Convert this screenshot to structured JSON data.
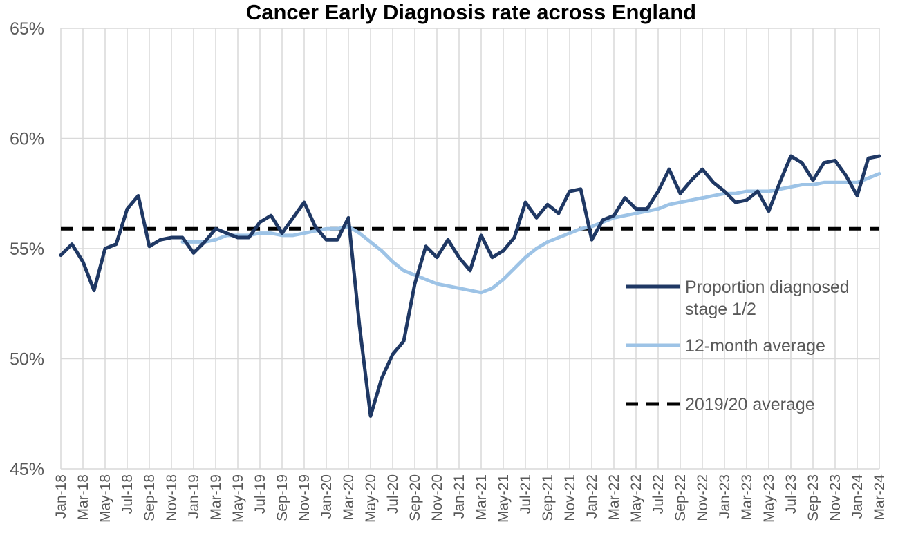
{
  "chart_data": {
    "type": "line",
    "title": "Cancer Early Diagnosis rate across England",
    "xlabel": "",
    "ylabel": "",
    "ylim": [
      45,
      65
    ],
    "y_ticks": [
      "45%",
      "50%",
      "55%",
      "60%",
      "65%"
    ],
    "y_tick_values": [
      45,
      50,
      55,
      60,
      65
    ],
    "grid": "vertical and horizontal",
    "legend_position": "right",
    "x": [
      "Jan-18",
      "Feb-18",
      "Mar-18",
      "Apr-18",
      "May-18",
      "Jun-18",
      "Jul-18",
      "Aug-18",
      "Sep-18",
      "Oct-18",
      "Nov-18",
      "Dec-18",
      "Jan-19",
      "Feb-19",
      "Mar-19",
      "Apr-19",
      "May-19",
      "Jun-19",
      "Jul-19",
      "Aug-19",
      "Sep-19",
      "Oct-19",
      "Nov-19",
      "Dec-19",
      "Jan-20",
      "Feb-20",
      "Mar-20",
      "Apr-20",
      "May-20",
      "Jun-20",
      "Jul-20",
      "Aug-20",
      "Sep-20",
      "Oct-20",
      "Nov-20",
      "Dec-20",
      "Jan-21",
      "Feb-21",
      "Mar-21",
      "Apr-21",
      "May-21",
      "Jun-21",
      "Jul-21",
      "Aug-21",
      "Sep-21",
      "Oct-21",
      "Nov-21",
      "Dec-21",
      "Jan-22",
      "Feb-22",
      "Mar-22",
      "Apr-22",
      "May-22",
      "Jun-22",
      "Jul-22",
      "Aug-22",
      "Sep-22",
      "Oct-22",
      "Nov-22",
      "Dec-22",
      "Jan-23",
      "Feb-23",
      "Mar-23",
      "Apr-23",
      "May-23",
      "Jun-23",
      "Jul-23",
      "Aug-23",
      "Sep-23",
      "Oct-23",
      "Nov-23",
      "Dec-23",
      "Jan-24",
      "Feb-24",
      "Mar-24"
    ],
    "x_tick_labels": [
      "Jan-18",
      "Mar-18",
      "May-18",
      "Jul-18",
      "Sep-18",
      "Nov-18",
      "Jan-19",
      "Mar-19",
      "May-19",
      "Jul-19",
      "Sep-19",
      "Nov-19",
      "Jan-20",
      "Mar-20",
      "May-20",
      "Jul-20",
      "Sep-20",
      "Nov-20",
      "Jan-21",
      "Mar-21",
      "May-21",
      "Jul-21",
      "Sep-21",
      "Nov-21",
      "Jan-22",
      "Mar-22",
      "May-22",
      "Jul-22",
      "Sep-22",
      "Nov-22",
      "Jan-23",
      "Mar-23",
      "May-23",
      "Jul-23",
      "Sep-23",
      "Nov-23",
      "Jan-24",
      "Mar-24"
    ],
    "series": [
      {
        "name": "Proportion diagnosed stage 1/2",
        "color": "#1f3864",
        "style": "solid",
        "values": [
          54.7,
          55.2,
          54.4,
          53.1,
          55.0,
          55.2,
          56.8,
          57.4,
          55.1,
          55.4,
          55.5,
          55.5,
          54.8,
          55.3,
          55.9,
          55.7,
          55.5,
          55.5,
          56.2,
          56.5,
          55.7,
          56.4,
          57.1,
          56.0,
          55.4,
          55.4,
          56.4,
          51.5,
          47.4,
          49.1,
          50.2,
          50.8,
          53.4,
          55.1,
          54.6,
          55.4,
          54.6,
          54.0,
          55.6,
          54.6,
          54.9,
          55.5,
          57.1,
          56.4,
          57.0,
          56.6,
          57.6,
          57.7,
          55.4,
          56.3,
          56.5,
          57.3,
          56.8,
          56.8,
          57.6,
          58.6,
          57.5,
          58.1,
          58.6,
          58.0,
          57.6,
          57.1,
          57.2,
          57.6,
          56.7,
          58.0,
          59.2,
          58.9,
          58.1,
          58.9,
          59.0,
          58.3,
          57.4,
          59.1,
          59.2
        ]
      },
      {
        "name": "12-month average",
        "color": "#9dc3e6",
        "style": "solid",
        "values": [
          null,
          null,
          null,
          null,
          null,
          null,
          null,
          null,
          null,
          null,
          null,
          55.3,
          55.3,
          55.3,
          55.4,
          55.6,
          55.6,
          55.6,
          55.7,
          55.7,
          55.6,
          55.6,
          55.7,
          55.8,
          55.9,
          55.9,
          56.0,
          55.7,
          55.3,
          54.9,
          54.4,
          54.0,
          53.8,
          53.6,
          53.4,
          53.3,
          53.2,
          53.1,
          53.0,
          53.2,
          53.6,
          54.1,
          54.6,
          55.0,
          55.3,
          55.5,
          55.7,
          55.9,
          56.0,
          56.2,
          56.4,
          56.5,
          56.6,
          56.7,
          56.8,
          57.0,
          57.1,
          57.2,
          57.3,
          57.4,
          57.5,
          57.5,
          57.6,
          57.6,
          57.6,
          57.7,
          57.8,
          57.9,
          57.9,
          58.0,
          58.0,
          58.0,
          58.0,
          58.2,
          58.4
        ]
      },
      {
        "name": "2019/20 average",
        "color": "#000000",
        "style": "dashed",
        "values_constant": 55.9
      }
    ]
  }
}
